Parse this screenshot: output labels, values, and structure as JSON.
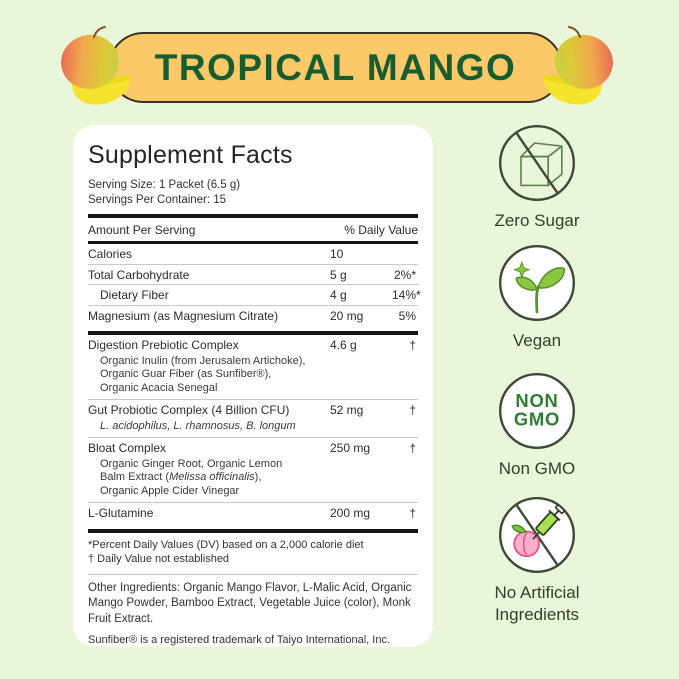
{
  "banner": {
    "title": "TROPICAL MANGO",
    "fill": "#FBC967",
    "text_color": "#185D31"
  },
  "decor": {
    "left_icon": "mango-with-slice-icon",
    "right_icon": "mango-with-slice-icon"
  },
  "panel": {
    "title": "Supplement Facts",
    "serving_size": "Serving Size: 1 Packet (6.5 g)",
    "servings_per_container": "Servings Per Container: 15",
    "columns": {
      "amount": "Amount Per Serving",
      "daily_value": "% Daily Value"
    },
    "rows": [
      {
        "label": "Calories",
        "amount": "10",
        "dv": "",
        "div": "thin"
      },
      {
        "label": "Total Carbohydrate",
        "amount": "5 g",
        "dv": "2%*",
        "div": "thin"
      },
      {
        "label": "Dietary Fiber",
        "indent": true,
        "amount": "4 g",
        "dv": "14%*",
        "div": "thin"
      },
      {
        "label": "Magnesium (as Magnesium Citrate)",
        "amount": "20 mg",
        "dv": "5%",
        "div": "thick"
      },
      {
        "label": "Digestion Prebiotic Complex",
        "amount": "4.6 g",
        "dv": "†",
        "div": "thin",
        "sub": [
          [
            {
              "t": "Organic Inulin (from Jerusalem Artichoke),"
            }
          ],
          [
            {
              "t": "Organic Guar Fiber (as Sunfiber®),"
            }
          ],
          [
            {
              "t": "Organic Acacia Senegal"
            }
          ]
        ]
      },
      {
        "label": "Gut Probiotic Complex (4 Billion CFU)",
        "amount": "52 mg",
        "dv": "†",
        "div": "thin",
        "sub": [
          [
            {
              "t": "L. acidophilus, L. rhamnosus, B. longum",
              "i": true
            }
          ]
        ]
      },
      {
        "label": "Bloat Complex",
        "amount": "250 mg",
        "dv": "†",
        "div": "thin",
        "sub": [
          [
            {
              "t": "Organic Ginger Root, Organic Lemon"
            }
          ],
          [
            {
              "t": "Balm Extract ("
            },
            {
              "t": "Melissa officinalis",
              "i": true
            },
            {
              "t": "),"
            }
          ],
          [
            {
              "t": "Organic Apple Cider Vinegar"
            }
          ]
        ]
      },
      {
        "label": "L-Glutamine",
        "amount": "200 mg",
        "dv": "†",
        "div": "thick"
      }
    ],
    "footnotes": {
      "dv_note": "*Percent Daily Values (DV) based on a 2,000 calorie diet",
      "dagger_note": "† Daily Value not established"
    },
    "other_ingredients": "Other Ingredients:  Organic Mango Flavor, L-Malic Acid, Organic Mango Powder, Bamboo Extract, Vegetable Juice (color), Monk Fruit Extract.",
    "trademark": "Sunfiber® is a registered trademark of Taiyo International, Inc."
  },
  "badges": [
    {
      "icon": "no-sugar-cube-icon",
      "label": "Zero Sugar"
    },
    {
      "icon": "sprout-icon",
      "label": "Vegan"
    },
    {
      "icon": "non-gmo-circle-icon",
      "label": "Non GMO",
      "circle_text": {
        "line1": "NON",
        "line2": "GMO"
      }
    },
    {
      "icon": "no-syringe-peach-icon",
      "label": "No Artificial\nIngredients"
    }
  ],
  "colors": {
    "background": "#EAF6DA",
    "badge_outline": "#3E4A36",
    "badge_green": "#2F7D32",
    "leaf_green": "#8DC63F",
    "peach_pink": "#F9AECB",
    "thick_rule": "#151515"
  }
}
